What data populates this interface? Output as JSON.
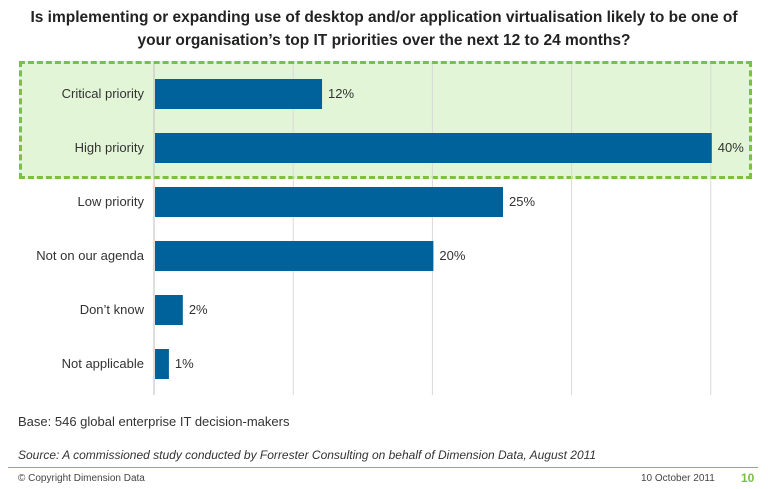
{
  "title": "Is implementing or expanding use of desktop and/or application virtualisation likely to be one of your organisation’s top IT priorities over the next 12 to 24 months?",
  "chart_data": {
    "type": "bar",
    "orientation": "horizontal",
    "categories": [
      "Critical priority",
      "High priority",
      "Low priority",
      "Not on our agenda",
      "Don’t know",
      "Not applicable"
    ],
    "values": [
      12,
      40,
      25,
      20,
      2,
      1
    ],
    "value_labels": [
      "12%",
      "40%",
      "25%",
      "20%",
      "2%",
      "1%"
    ],
    "xlim": [
      0,
      45
    ],
    "grid_values": [
      10,
      20,
      30,
      40
    ],
    "highlighted_categories": [
      "Critical priority",
      "High priority"
    ],
    "bar_color": "#00629b"
  },
  "base_note": "Base: 546 global enterprise IT decision-makers",
  "source_note": "Source: A commissioned study conducted by Forrester Consulting on behalf of Dimension Data, August 2011",
  "footer": {
    "copyright": "© Copyright Dimension Data",
    "date": "10 October 2011",
    "page_number": "10"
  },
  "colors": {
    "accent": "#7ac143",
    "highlight_fill": "#e2f5d6",
    "bar": "#00629b"
  }
}
